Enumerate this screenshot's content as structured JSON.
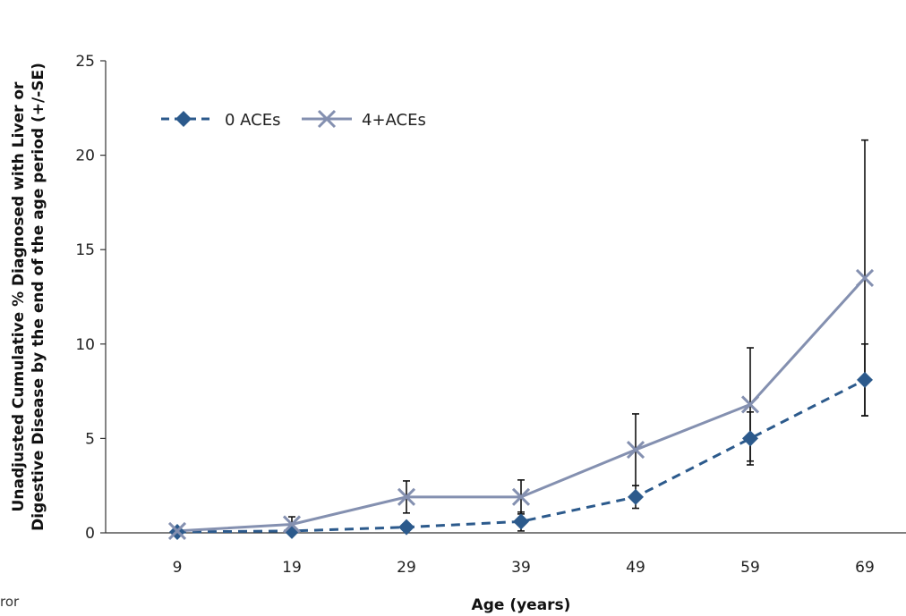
{
  "chart_data": {
    "type": "line",
    "xlabel": "Age (years)",
    "ylabel_line1": "Unadjusted Cumulative % Diagnosed with Liver or",
    "ylabel_line2": "Digestive Disease by the end of the age period (+/-SE)",
    "categories": [
      "9",
      "19",
      "29",
      "39",
      "49",
      "59",
      "69"
    ],
    "ylim": [
      0,
      25
    ],
    "yticks": [
      0,
      5,
      10,
      15,
      20,
      25
    ],
    "grid": false,
    "legend_position": "top-left",
    "series": [
      {
        "name": "0 ACEs",
        "values": [
          0.05,
          0.1,
          0.3,
          0.6,
          1.9,
          5.0,
          8.1
        ],
        "error": [
          0.0,
          0.05,
          0.1,
          0.5,
          0.6,
          1.4,
          1.9
        ],
        "color": "#2c5a8c",
        "line_style": "dashed",
        "marker": "diamond"
      },
      {
        "name": "4+ACEs",
        "values": [
          0.1,
          0.45,
          1.9,
          1.9,
          4.4,
          6.8,
          13.5
        ],
        "error": [
          0.0,
          0.4,
          0.85,
          0.9,
          1.9,
          3.0,
          7.3
        ],
        "color": "#8490b0",
        "line_style": "solid",
        "marker": "x"
      }
    ]
  },
  "footnote": "ror"
}
